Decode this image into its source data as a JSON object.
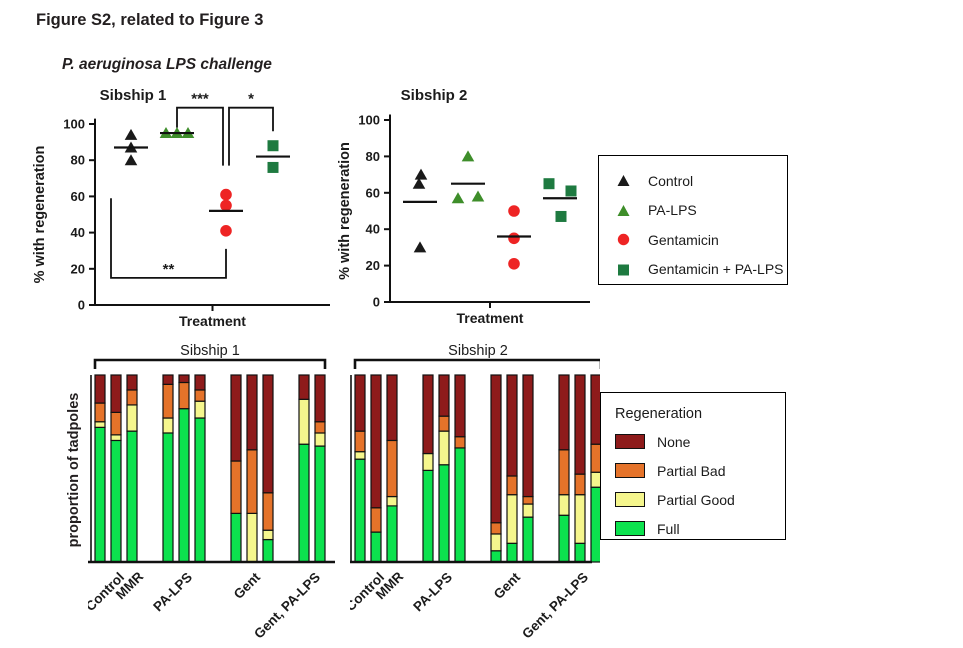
{
  "page": {
    "title": "Figure S2, related to Figure 3"
  },
  "scatter_section": {
    "subtitle": "P. aeruginosa LPS challenge",
    "legend": {
      "items": [
        {
          "label": "Control",
          "marker": "triangle",
          "color": "#1a1a1a"
        },
        {
          "label": "PA-LPS",
          "marker": "triangle",
          "color": "#3e8e2a"
        },
        {
          "label": "Gentamicin",
          "marker": "circle",
          "color": "#ee2424"
        },
        {
          "label": "Gentamicin + PA-LPS",
          "marker": "square",
          "color": "#1e7a40"
        }
      ]
    }
  },
  "bar_section": {
    "legend": {
      "title": "Regeneration",
      "items": [
        {
          "label": "None",
          "color": "#8e1b1b"
        },
        {
          "label": "Partial Bad",
          "color": "#e5732a"
        },
        {
          "label": "Partial Good",
          "color": "#f5f68d"
        },
        {
          "label": "Full",
          "color": "#0ce24e"
        }
      ]
    }
  },
  "chart_data": [
    {
      "id": "scatter1",
      "type": "scatter",
      "title": "Sibship 1",
      "xlabel": "Treatment",
      "ylabel": "% with regeneration",
      "ylim": [
        0,
        100
      ],
      "yticks": [
        0,
        20,
        40,
        60,
        80,
        100
      ],
      "groups": [
        {
          "name": "Control",
          "marker": "triangle",
          "color": "#1a1a1a",
          "values": [
            94,
            87,
            80
          ],
          "dx": [
            0,
            0,
            0
          ],
          "mean": 87
        },
        {
          "name": "PA-LPS",
          "marker": "triangle",
          "color": "#3e8e2a",
          "values": [
            95,
            95,
            95
          ],
          "dx": [
            -11,
            0,
            11
          ],
          "mean": 95
        },
        {
          "name": "Gentamicin",
          "marker": "circle",
          "color": "#ee2424",
          "values": [
            61,
            55,
            41
          ],
          "dx": [
            0,
            0,
            0
          ],
          "mean": 52
        },
        {
          "name": "Gentamicin + PA-LPS",
          "marker": "square",
          "color": "#1e7a40",
          "values": [
            88,
            76
          ],
          "dx": [
            0,
            0
          ],
          "mean": 82
        }
      ],
      "brackets": [
        {
          "label": "***",
          "kind": "top",
          "g1": 1,
          "g2": 2,
          "y": 109,
          "drop1": 98,
          "drop2": 77,
          "ox2": -3
        },
        {
          "label": "*",
          "kind": "top",
          "g1": 2,
          "g2": 3,
          "y": 109,
          "drop1": 77,
          "drop2": 96,
          "ox1": 3
        },
        {
          "label": "**",
          "kind": "bottom",
          "g1": 0,
          "g2": 2,
          "y": 15,
          "rise1": 59,
          "rise2": 31,
          "ox1": -20
        }
      ]
    },
    {
      "id": "scatter2",
      "type": "scatter",
      "title": "Sibship 2",
      "xlabel": "Treatment",
      "ylabel": "% with regeneration",
      "ylim": [
        0,
        100
      ],
      "yticks": [
        0,
        20,
        40,
        60,
        80,
        100
      ],
      "groups": [
        {
          "name": "Control",
          "marker": "triangle",
          "color": "#1a1a1a",
          "values": [
            70,
            65,
            30
          ],
          "dx": [
            1,
            -1,
            0
          ],
          "mean": 55
        },
        {
          "name": "PA-LPS",
          "marker": "triangle",
          "color": "#3e8e2a",
          "values": [
            80,
            57,
            58
          ],
          "dx": [
            0,
            -10,
            10
          ],
          "mean": 65
        },
        {
          "name": "Gentamicin",
          "marker": "circle",
          "color": "#ee2424",
          "values": [
            50,
            35,
            21
          ],
          "dx": [
            0,
            0,
            0
          ],
          "mean": 36
        },
        {
          "name": "Gentamicin + PA-LPS",
          "marker": "square",
          "color": "#1e7a40",
          "values": [
            65,
            61,
            47
          ],
          "dx": [
            -11,
            11,
            1
          ],
          "mean": 57
        }
      ],
      "brackets": []
    },
    {
      "id": "bars1",
      "type": "stacked_bar",
      "title": "Sibship 1",
      "ylabel": "proportion of tadpoles",
      "stack_keys": [
        "full",
        "partial_good",
        "partial_bad",
        "none"
      ],
      "groups": [
        {
          "label_lines": [
            "Control",
            "MMR"
          ],
          "bars": [
            [
              0.72,
              0.03,
              0.1,
              0.15
            ],
            [
              0.65,
              0.03,
              0.12,
              0.2
            ],
            [
              0.7,
              0.14,
              0.08,
              0.08
            ]
          ]
        },
        {
          "label_lines": [
            "PA-LPS"
          ],
          "bars": [
            [
              0.69,
              0.08,
              0.18,
              0.05
            ],
            [
              0.82,
              0.0,
              0.14,
              0.04
            ],
            [
              0.77,
              0.09,
              0.06,
              0.08
            ]
          ]
        },
        {
          "label_lines": [
            "Gent"
          ],
          "bars": [
            [
              0.26,
              0.0,
              0.28,
              0.46
            ],
            [
              0.0,
              0.26,
              0.34,
              0.4
            ],
            [
              0.12,
              0.05,
              0.2,
              0.63
            ]
          ]
        },
        {
          "label_lines": [
            "Gent, PA-LPS"
          ],
          "bars": [
            [
              0.63,
              0.24,
              0.0,
              0.13
            ],
            [
              0.62,
              0.07,
              0.06,
              0.25
            ]
          ]
        }
      ]
    },
    {
      "id": "bars2",
      "type": "stacked_bar",
      "title": "Sibship 2",
      "ylabel": "proportion of tadpoles",
      "stack_keys": [
        "full",
        "partial_good",
        "partial_bad",
        "none"
      ],
      "groups": [
        {
          "label_lines": [
            "Control",
            "MMR"
          ],
          "bars": [
            [
              0.55,
              0.04,
              0.11,
              0.3
            ],
            [
              0.16,
              0.0,
              0.13,
              0.71
            ],
            [
              0.3,
              0.05,
              0.3,
              0.35
            ]
          ]
        },
        {
          "label_lines": [
            "PA-LPS"
          ],
          "bars": [
            [
              0.49,
              0.09,
              0.0,
              0.42
            ],
            [
              0.52,
              0.18,
              0.08,
              0.22
            ],
            [
              0.61,
              0.0,
              0.06,
              0.33
            ]
          ]
        },
        {
          "label_lines": [
            "Gent"
          ],
          "bars": [
            [
              0.06,
              0.09,
              0.06,
              0.79
            ],
            [
              0.1,
              0.26,
              0.1,
              0.54
            ],
            [
              0.24,
              0.07,
              0.04,
              0.65
            ]
          ]
        },
        {
          "label_lines": [
            "Gent, PA-LPS"
          ],
          "bars": [
            [
              0.25,
              0.11,
              0.24,
              0.4
            ],
            [
              0.1,
              0.26,
              0.11,
              0.53
            ],
            [
              0.4,
              0.08,
              0.15,
              0.37
            ]
          ]
        }
      ]
    }
  ]
}
